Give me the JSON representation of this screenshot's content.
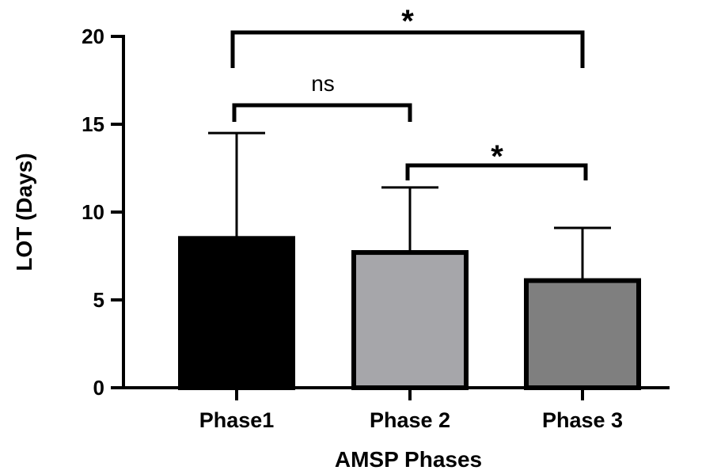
{
  "chart_data": {
    "type": "bar",
    "categories": [
      "Phase1",
      "Phase 2",
      "Phase 3"
    ],
    "values": [
      8.5,
      7.7,
      6.1
    ],
    "error_upper": [
      14.5,
      11.4,
      9.1
    ],
    "bar_colors": [
      "#000000",
      "#a6a6aa",
      "#7f7f7f"
    ],
    "xlabel": "AMSP Phases",
    "ylabel": "LOT (Days)",
    "ylim": [
      0,
      20
    ],
    "yticks": [
      {
        "value": 0,
        "label": "0"
      },
      {
        "value": 5,
        "label": "5"
      },
      {
        "value": 10,
        "label": "10"
      },
      {
        "value": 15,
        "label": "15"
      },
      {
        "value": 20,
        "label": "20"
      }
    ],
    "grid": false,
    "significance": [
      {
        "from": 0,
        "to": 2,
        "label": "*"
      },
      {
        "from": 0,
        "to": 1,
        "label": "ns"
      },
      {
        "from": 1,
        "to": 2,
        "label": "*"
      }
    ]
  }
}
